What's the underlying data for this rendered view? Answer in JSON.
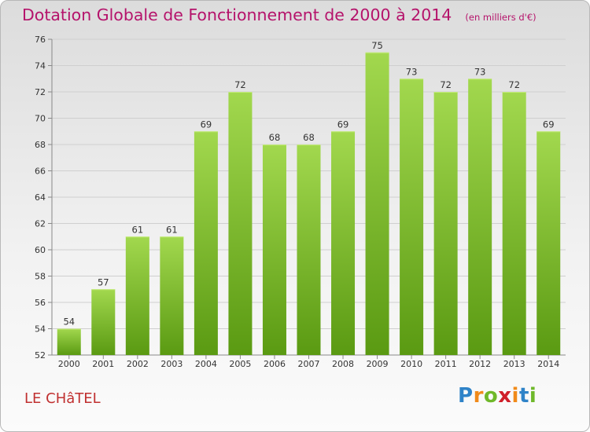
{
  "header": {
    "title": "Dotation Globale de Fonctionnement de 2000 à 2014",
    "unit": "(en milliers d'€)"
  },
  "footer": {
    "place": "LE CHâTEL",
    "brand_letters": [
      "P",
      "r",
      "o",
      "x",
      "i",
      "t",
      "i"
    ],
    "brand_colors": [
      "#2f83c8",
      "#f08a1a",
      "#6fb82a",
      "#d0202a",
      "#f08a1a",
      "#2f83c8",
      "#6fb82a"
    ]
  },
  "chart_data": {
    "type": "bar",
    "categories": [
      "2000",
      "2001",
      "2002",
      "2003",
      "2004",
      "2005",
      "2006",
      "2007",
      "2008",
      "2009",
      "2010",
      "2011",
      "2012",
      "2013",
      "2014"
    ],
    "values": [
      54,
      57,
      61,
      61,
      69,
      72,
      68,
      68,
      69,
      75,
      73,
      72,
      73,
      72,
      69
    ],
    "data_labels": [
      "54",
      "57",
      "61",
      "61",
      "69",
      "72",
      "68",
      "68",
      "69",
      "75",
      "73",
      "72",
      "73",
      "72",
      "69"
    ],
    "yticks": [
      "52",
      "54",
      "56",
      "58",
      "60",
      "62",
      "64",
      "66",
      "68",
      "70",
      "72",
      "74",
      "76"
    ],
    "ylim": [
      52,
      76
    ],
    "grid": true,
    "bar_color": "#7fbf2a",
    "bar_color_light": "#a2d84e",
    "bar_color_dark": "#5a9a12"
  }
}
